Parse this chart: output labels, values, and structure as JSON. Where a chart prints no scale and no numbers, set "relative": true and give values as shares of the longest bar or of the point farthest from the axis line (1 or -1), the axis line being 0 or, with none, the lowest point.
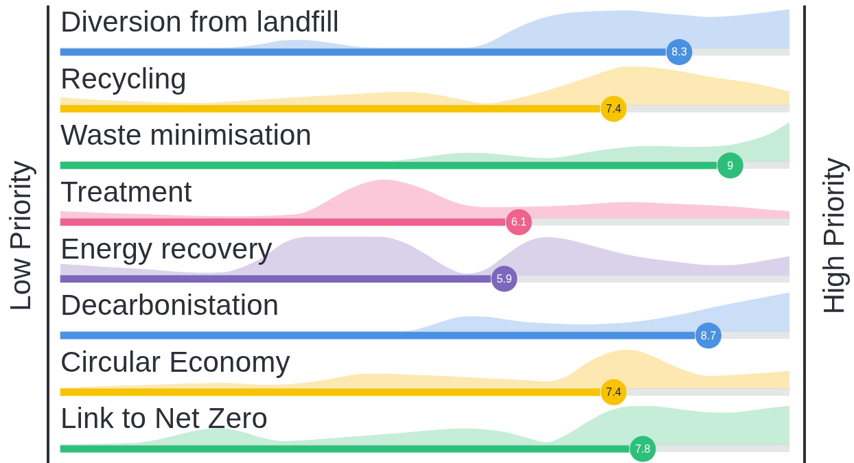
{
  "chart_data": [
    {
      "type": "bar",
      "orientation": "horizontal",
      "categories": [
        "Diversion from landfill",
        "Recycling",
        "Waste minimisation",
        "Treatment",
        "Energy recovery",
        "Decarbonistation",
        "Circular Economy",
        "Link to Net Zero"
      ],
      "values": [
        8.3,
        7.4,
        9,
        6.1,
        5.9,
        8.7,
        7.4,
        7.8
      ],
      "value_labels": [
        "8.3",
        "7.4",
        "9",
        "6.1",
        "5.9",
        "8.7",
        "7.4",
        "7.8"
      ],
      "colors": [
        "#4a90e2",
        "#f7c500",
        "#2bbf7a",
        "#f0628e",
        "#7c67bd",
        "#4b91e3",
        "#f8c401",
        "#2cc07b"
      ],
      "annotations": [
        "Low Priority",
        "High Priority"
      ]
    },
    {
      "type": "area",
      "relative": true,
      "color": "#c9ddf6",
      "categories": [
        null,
        null,
        null,
        null,
        null,
        null,
        null,
        null,
        null,
        null,
        null,
        null,
        null,
        null,
        null,
        null,
        null,
        null,
        null,
        null,
        null,
        null,
        null,
        null,
        null,
        null,
        null,
        null,
        null,
        null,
        null,
        null,
        null,
        null,
        null,
        null,
        null
      ],
      "values": [
        0,
        0,
        0,
        0,
        0,
        0,
        0,
        0,
        0,
        0.03,
        0.1,
        0.19,
        0.2,
        0.15,
        0.07,
        0.01,
        0,
        0,
        0,
        0,
        0,
        0.1,
        0.37,
        0.62,
        0.8,
        0.9,
        0.94,
        0.96,
        0.97,
        0.93,
        0.88,
        0.84,
        0.8,
        0.82,
        0.87,
        0.93,
        1
      ]
    },
    {
      "type": "area",
      "relative": true,
      "color": "#fde9b4",
      "categories": [
        null,
        null,
        null,
        null,
        null,
        null,
        null,
        null,
        null,
        null,
        null,
        null,
        null,
        null,
        null,
        null,
        null,
        null,
        null,
        null,
        null,
        null,
        null,
        null,
        null,
        null,
        null,
        null,
        null,
        null,
        null,
        null,
        null,
        null,
        null,
        null,
        null
      ],
      "values": [
        0.2,
        0.15,
        0.12,
        0.1,
        0.08,
        0.06,
        0.05,
        0.04,
        0.07,
        0.1,
        0.14,
        0.17,
        0.2,
        0.23,
        0.26,
        0.29,
        0.32,
        0.33,
        0.3,
        0.22,
        0.11,
        0.03,
        0.1,
        0.22,
        0.36,
        0.53,
        0.7,
        0.88,
        1,
        0.98,
        0.92,
        0.83,
        0.73,
        0.65,
        0.58,
        0.47,
        0.34
      ]
    },
    {
      "type": "area",
      "relative": true,
      "color": "#c4ecd6",
      "categories": [
        null,
        null,
        null,
        null,
        null,
        null,
        null,
        null,
        null,
        null,
        null,
        null,
        null,
        null,
        null,
        null,
        null,
        null,
        null,
        null,
        null,
        null,
        null,
        null,
        null,
        null,
        null,
        null,
        null,
        null,
        null,
        null,
        null,
        null,
        null,
        null,
        null
      ],
      "values": [
        0,
        0,
        0,
        0,
        0,
        0,
        0,
        0,
        0,
        0,
        0,
        0,
        0,
        0,
        0,
        0,
        0,
        0.03,
        0.1,
        0.17,
        0.21,
        0.2,
        0.15,
        0.1,
        0.07,
        0.12,
        0.22,
        0.3,
        0.36,
        0.39,
        0.38,
        0.36,
        0.37,
        0.41,
        0.52,
        0.7,
        1
      ]
    },
    {
      "type": "area",
      "relative": true,
      "color": "#fbc8d9",
      "categories": [
        null,
        null,
        null,
        null,
        null,
        null,
        null,
        null,
        null,
        null,
        null,
        null,
        null,
        null,
        null,
        null,
        null,
        null,
        null,
        null,
        null,
        null,
        null,
        null,
        null,
        null,
        null,
        null,
        null,
        null,
        null,
        null,
        null,
        null,
        null,
        null,
        null
      ],
      "values": [
        0.17,
        0.15,
        0.13,
        0.11,
        0.1,
        0.08,
        0.06,
        0.05,
        0.04,
        0.04,
        0.05,
        0.07,
        0.13,
        0.38,
        0.68,
        0.9,
        1,
        0.91,
        0.74,
        0.5,
        0.33,
        0.28,
        0.28,
        0.29,
        0.3,
        0.32,
        0.35,
        0.39,
        0.41,
        0.4,
        0.37,
        0.35,
        0.33,
        0.3,
        0.26,
        0.21,
        0.17
      ]
    },
    {
      "type": "area",
      "relative": true,
      "color": "#d9d2ea",
      "categories": [
        null,
        null,
        null,
        null,
        null,
        null,
        null,
        null,
        null,
        null,
        null,
        null,
        null,
        null,
        null,
        null,
        null,
        null,
        null,
        null,
        null,
        null,
        null,
        null,
        null,
        null,
        null,
        null,
        null,
        null,
        null,
        null,
        null,
        null,
        null,
        null,
        null
      ],
      "values": [
        0.28,
        0.25,
        0.21,
        0.18,
        0.15,
        0.11,
        0.07,
        0.05,
        0.06,
        0.2,
        0.45,
        0.82,
        0.98,
        1,
        1,
        1,
        0.98,
        0.83,
        0.55,
        0.22,
        0.03,
        0.14,
        0.51,
        0.85,
        0.98,
        0.92,
        0.79,
        0.65,
        0.52,
        0.43,
        0.36,
        0.3,
        0.25,
        0.25,
        0.3,
        0.39,
        0.48
      ]
    },
    {
      "type": "area",
      "relative": true,
      "color": "#cadef7",
      "categories": [
        null,
        null,
        null,
        null,
        null,
        null,
        null,
        null,
        null,
        null,
        null,
        null,
        null,
        null,
        null,
        null,
        null,
        null,
        null,
        null,
        null,
        null,
        null,
        null,
        null,
        null,
        null,
        null,
        null,
        null,
        null,
        null,
        null,
        null,
        null,
        null,
        null
      ],
      "values": [
        0,
        0,
        0,
        0,
        0,
        0,
        0,
        0,
        0,
        0,
        0,
        0,
        0,
        0,
        0,
        0,
        0,
        0,
        0.1,
        0.27,
        0.38,
        0.37,
        0.3,
        0.23,
        0.2,
        0.18,
        0.17,
        0.19,
        0.22,
        0.28,
        0.37,
        0.47,
        0.59,
        0.7,
        0.8,
        0.9,
        1
      ]
    },
    {
      "type": "area",
      "relative": true,
      "color": "#fde8b2",
      "categories": [
        null,
        null,
        null,
        null,
        null,
        null,
        null,
        null,
        null,
        null,
        null,
        null,
        null,
        null,
        null,
        null,
        null,
        null,
        null,
        null,
        null,
        null,
        null,
        null,
        null,
        null,
        null,
        null,
        null,
        null,
        null,
        null,
        null,
        null,
        null,
        null,
        null
      ],
      "values": [
        0,
        0.02,
        0.04,
        0.06,
        0.07,
        0.09,
        0.11,
        0.12,
        0.13,
        0.11,
        0.08,
        0.09,
        0.13,
        0.2,
        0.3,
        0.37,
        0.37,
        0.35,
        0.33,
        0.31,
        0.28,
        0.25,
        0.23,
        0.2,
        0.17,
        0.3,
        0.65,
        0.9,
        1,
        0.88,
        0.64,
        0.43,
        0.31,
        0.33,
        0.36,
        0.4,
        0.44
      ]
    },
    {
      "type": "area",
      "relative": true,
      "color": "#c5edd7",
      "categories": [
        null,
        null,
        null,
        null,
        null,
        null,
        null,
        null,
        null,
        null,
        null,
        null,
        null,
        null,
        null,
        null,
        null,
        null,
        null,
        null,
        null,
        null,
        null,
        null,
        null,
        null,
        null,
        null,
        null,
        null,
        null,
        null,
        null,
        null,
        null,
        null,
        null
      ],
      "values": [
        0,
        0,
        0.01,
        0.02,
        0.05,
        0.14,
        0.27,
        0.38,
        0.41,
        0.32,
        0.16,
        0.08,
        0.1,
        0.14,
        0.18,
        0.22,
        0.26,
        0.3,
        0.35,
        0.39,
        0.41,
        0.38,
        0.31,
        0.17,
        0.05,
        0.25,
        0.57,
        0.85,
        0.98,
        1,
        0.95,
        0.88,
        0.83,
        0.82,
        0.87,
        0.94,
        1
      ]
    }
  ]
}
